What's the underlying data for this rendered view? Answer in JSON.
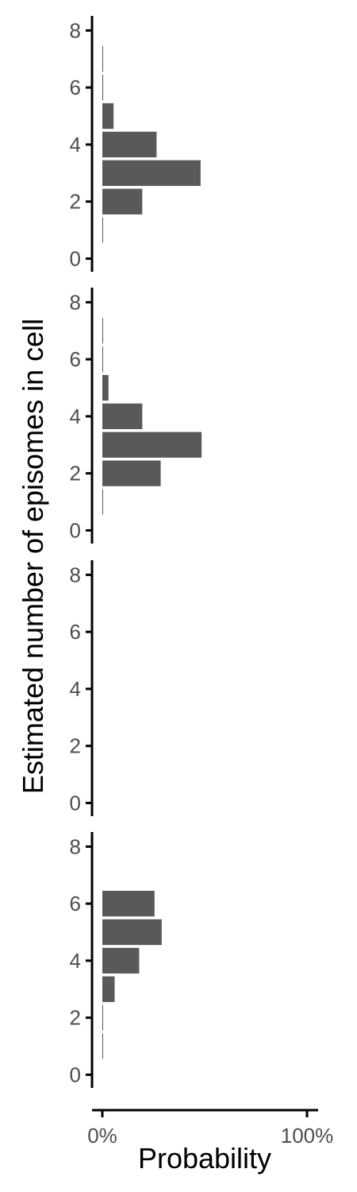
{
  "chart_data": {
    "type": "bar",
    "orientation": "horizontal",
    "xlabel": "Probability",
    "ylabel": "Estimated number of episomes in cell",
    "xlim": [
      0,
      1
    ],
    "x_ticks": [
      0,
      1
    ],
    "x_tick_labels": [
      "0%",
      "100%"
    ],
    "ylim": [
      0,
      8
    ],
    "y_ticks": [
      0,
      2,
      4,
      6,
      8
    ],
    "y_tick_labels": [
      "0",
      "2",
      "4",
      "6",
      "8"
    ],
    "grid": false,
    "bar_color": "#595959",
    "categories": [
      1,
      2,
      3,
      4,
      5,
      6,
      7
    ],
    "panels": [
      {
        "values": [
          0.002,
          0.195,
          0.48,
          0.265,
          0.055,
          0.004,
          0.001
        ]
      },
      {
        "values": [
          0.003,
          0.285,
          0.485,
          0.195,
          0.03,
          0.002,
          0.001
        ]
      },
      {
        "values": [
          0,
          0,
          0,
          0,
          0,
          0,
          0
        ]
      },
      {
        "values": [
          0.002,
          0.001,
          0.06,
          0.18,
          0.29,
          0.255,
          0
        ]
      }
    ]
  }
}
